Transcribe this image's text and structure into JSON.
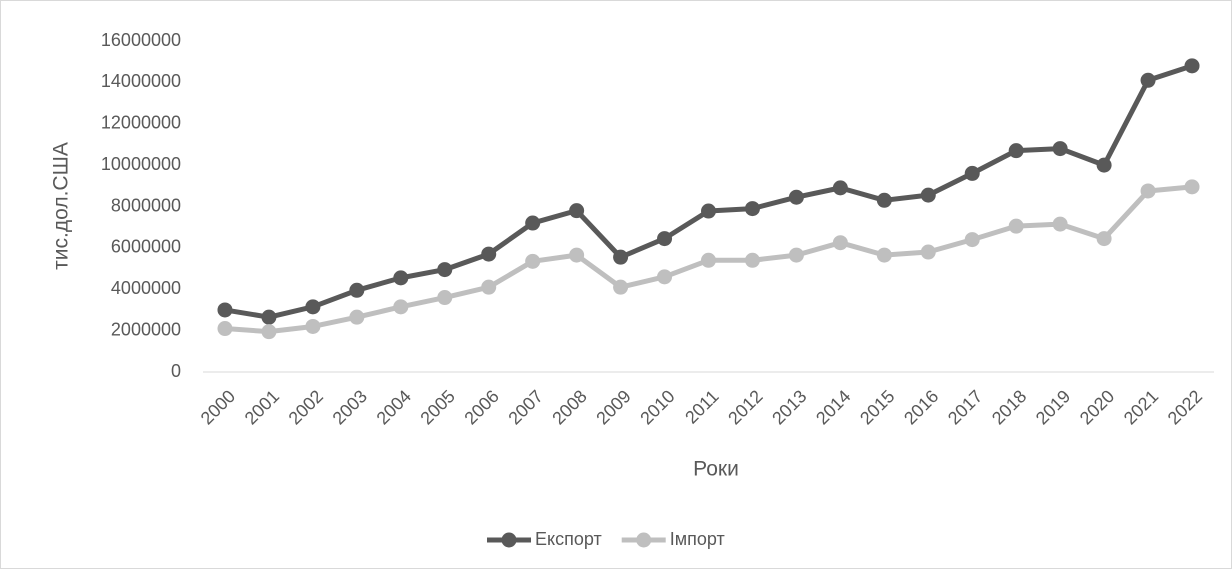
{
  "chart_data": {
    "type": "line",
    "x_label": "Роки",
    "y_label": "тис.дол.США",
    "categories": [
      "2000",
      "2001",
      "2002",
      "2003",
      "2004",
      "2005",
      "2006",
      "2007",
      "2008",
      "2009",
      "2010",
      "2011",
      "2012",
      "2013",
      "2014",
      "2015",
      "2016",
      "2017",
      "2018",
      "2019",
      "2020",
      "2021",
      "2022"
    ],
    "series": [
      {
        "name": "Експорт",
        "color": "#595959",
        "values": [
          3000000,
          2650000,
          3150000,
          3950000,
          4550000,
          4950000,
          5700000,
          7200000,
          7800000,
          5550000,
          6450000,
          7780000,
          7900000,
          8450000,
          8900000,
          8300000,
          8550000,
          9600000,
          10700000,
          10800000,
          10000000,
          14100000,
          14800000
        ]
      },
      {
        "name": "Імпорт",
        "color": "#bfbfbf",
        "values": [
          2100000,
          1950000,
          2200000,
          2650000,
          3150000,
          3600000,
          4100000,
          5350000,
          5650000,
          4100000,
          4600000,
          5400000,
          5400000,
          5650000,
          6250000,
          5650000,
          5800000,
          6400000,
          7050000,
          7150000,
          6450000,
          8750000,
          8950000
        ]
      }
    ],
    "ylim": [
      0,
      16000000
    ],
    "yticks": [
      0,
      2000000,
      4000000,
      6000000,
      8000000,
      10000000,
      12000000,
      14000000,
      16000000
    ],
    "grid": false,
    "legend": "bottom"
  }
}
